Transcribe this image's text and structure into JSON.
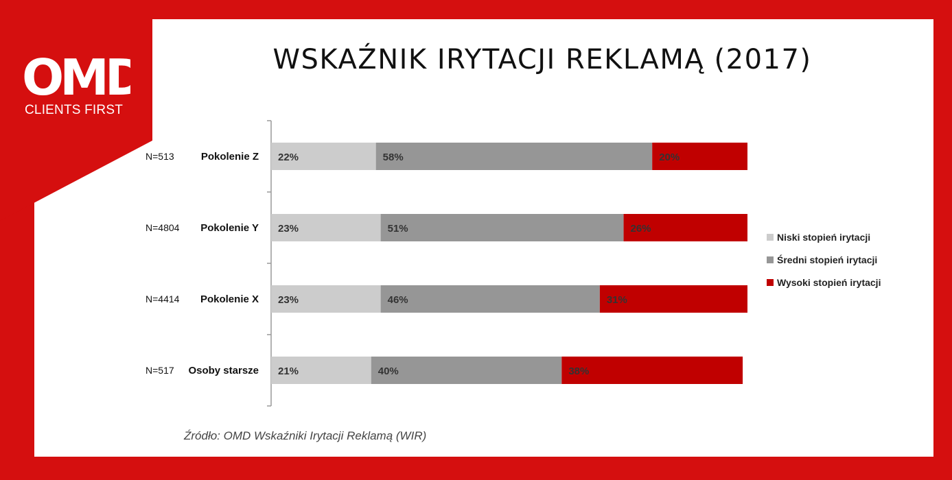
{
  "title": "WSKAŹNIK IRYTACJI REKLAMĄ (2017)",
  "logo": {
    "text": "OMD",
    "subtitle": "CLIENTS FIRST"
  },
  "source": "Źródło:  OMD Wskaźniki Irytacji Reklamą (WIR)",
  "colors": {
    "frame": "#d50f0f",
    "low": "#cccccc",
    "mid": "#969696",
    "high": "#c00000"
  },
  "chart_data": {
    "type": "bar",
    "orientation": "horizontal",
    "stacked": true,
    "normalized": true,
    "categories": [
      "Pokolenie Z",
      "Pokolenie Y",
      "Pokolenie X",
      "Osoby starsze"
    ],
    "sample_sizes": [
      "N=513",
      "N=4804",
      "N=4414",
      "N=517"
    ],
    "series": [
      {
        "name": "Niski stopień irytacji",
        "color": "#cccccc",
        "values": [
          22,
          23,
          23,
          21
        ],
        "labels": [
          "22%",
          "23%",
          "23%",
          "21%"
        ]
      },
      {
        "name": "Średni stopień irytacji",
        "color": "#969696",
        "values": [
          58,
          51,
          46,
          40
        ],
        "labels": [
          "58%",
          "51%",
          "46%",
          "40%"
        ]
      },
      {
        "name": "Wysoki stopień irytacji",
        "color": "#c00000",
        "values": [
          20,
          26,
          31,
          38
        ],
        "labels": [
          "20%",
          "26%",
          "31%",
          "38%"
        ]
      }
    ],
    "xlim": [
      0,
      100
    ],
    "legend": "right",
    "grid": false
  }
}
